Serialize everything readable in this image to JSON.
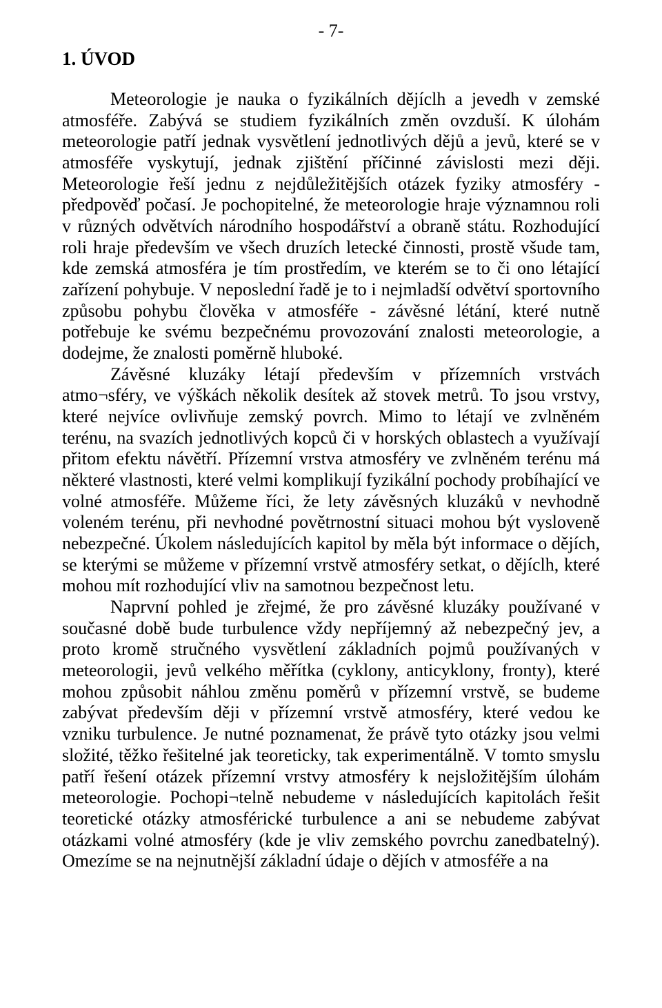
{
  "page_number": "- 7-",
  "heading": "1. ÚVOD",
  "para1_indented": "Meteorologie je nauka o fyzikálních dějíclh a jevedh v zemské atmosféře. Zabývá se studiem fyzikálních změn ovzduší. K úlohám meteorologie patří jednak vysvětlení jednotlivých dějů a jevů, které se v atmosféře vyskytují, jednak zjištění příčinné závislosti mezi ději. Meteorologie řeší jednu z nejdůležitějších otázek fyziky atmosféry - předpověď počasí. Je pochopitelné, že meteorologie hraje významnou roli v různých odvětvích národního hospodářství a obraně státu. Rozhodující roli hraje především ve všech druzích letecké činnosti, prostě všude tam, kde zemská atmosféra je tím prostředím, ve kterém se to či ono létající zařízení pohybuje. V neposlední řadě je to i nejmladší odvětví sportovního způsobu pohybu člověka v atmosféře - závěsné létání, které nutně potřebuje ke svému bezpečnému provozování znalosti meteorologie, a dodejme, že znalosti poměrně hluboké.",
  "para2_indented": "Závěsné kluzáky létají především v přízemních vrstvách atmo¬sféry, ve výškách několik desítek až stovek metrů. To jsou vrstvy, které nejvíce ovlivňuje zemský povrch. Mimo to létají ve zvlněném terénu, na svazích jednotlivých kopců či v horských oblastech a využívají přitom efektu návětří. Přízemní vrstva atmosféry ve zvlněném terénu má některé vlastnosti, které velmi komplikují fyzikální pochody probíhající ve volné atmosféře. Můžeme říci, že lety závěsných kluzáků v nevhodně voleném terénu, při nevhodné povětrnostní situaci mohou být vysloveně nebezpečné. Úkolem následujících kapitol by měla být informace o dějích, se kterými se můžeme v přízemní vrstvě atmosféry setkat, o dějíclh, které mohou mít rozhodující vliv na samotnou bezpečnost letu.",
  "para3_indented": "Naprvní pohled je zřejmé, že pro závěsné kluzáky používané v současné době bude turbulence vždy nepříjemný až nebezpečný jev, a proto kromě stručného vysvětlení základních pojmů používaných v meteorologii, jevů velkého měřítka (cyklony, anticyklony, fronty), které mohou způsobit náhlou změnu poměrů v přízemní vrstvě, se budeme zabývat především ději v přízemní vrstvě atmosféry, které vedou ke vzniku turbulence. Je nutné poznamenat, že právě tyto otázky jsou velmi složité, těžko řešitelné jak teoreticky, tak experimentálně. V tomto smyslu patří řešení otázek přízemní vrstvy atmosféry k nejsložitějším úlohám meteorologie. Pochopi¬telně nebudeme v následujících kapitolách řešit teoretické otázky atmosférické turbulence a ani se nebudeme zabývat otázkami volné atmosféry (kde je vliv zemského povrchu zanedbatelný). Omezíme se na nejnutnější základní údaje o dějích v atmosféře a na"
}
